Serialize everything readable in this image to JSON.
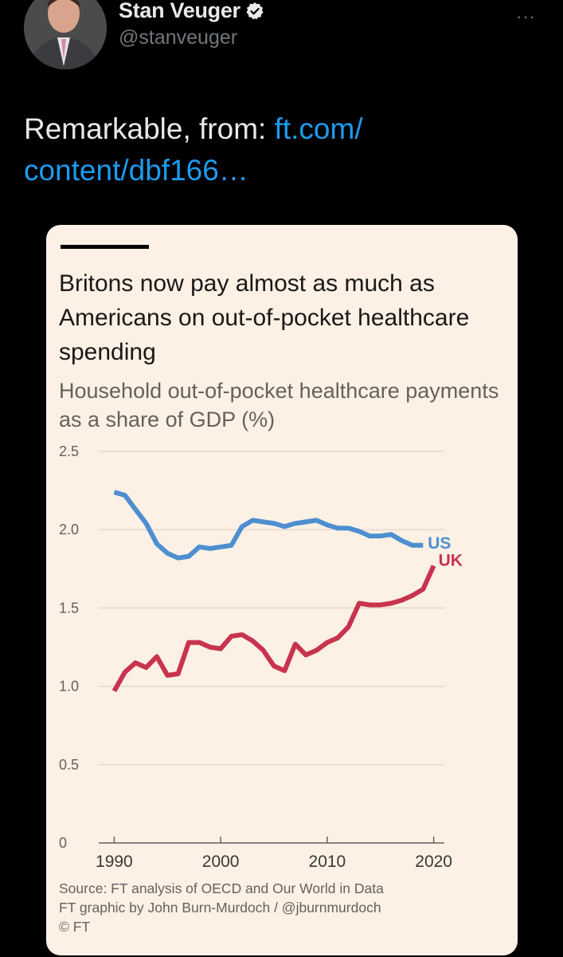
{
  "tweet": {
    "author_name": "Stan Veuger",
    "handle": "@stanveuger",
    "text_prefix": "Remarkable, from: ",
    "link_line1": "ft.com/",
    "link_line2": "content/dbf166…",
    "more_label": "···",
    "verified_icon": "verified-badge-icon",
    "accent_color": "#1d9bf0"
  },
  "chart_data": {
    "type": "line",
    "title": "Britons now pay almost as much as Americans on out-of-pocket healthcare spending",
    "subtitle": "Household out-of-pocket healthcare payments as a share of GDP (%)",
    "xlabel": "",
    "ylabel": "",
    "xlim": [
      1989,
      2021
    ],
    "ylim": [
      0,
      2.5
    ],
    "x_ticks": [
      1990,
      2000,
      2010,
      2020
    ],
    "y_ticks": [
      0,
      0.5,
      1.0,
      1.5,
      2.0,
      2.5
    ],
    "y_tick_labels": [
      "0",
      "0.5",
      "1.0",
      "1.5",
      "2.0",
      "2.5"
    ],
    "grid": true,
    "series": [
      {
        "name": "US",
        "color": "#4d8fd0",
        "x": [
          1990,
          1991,
          1992,
          1993,
          1994,
          1995,
          1996,
          1997,
          1998,
          1999,
          2000,
          2001,
          2002,
          2003,
          2004,
          2005,
          2006,
          2007,
          2008,
          2009,
          2010,
          2011,
          2012,
          2013,
          2014,
          2015,
          2016,
          2017,
          2018,
          2019
        ],
        "values": [
          2.24,
          2.22,
          2.13,
          2.04,
          1.91,
          1.85,
          1.82,
          1.83,
          1.89,
          1.88,
          1.89,
          1.9,
          2.02,
          2.06,
          2.05,
          2.04,
          2.02,
          2.04,
          2.05,
          2.06,
          2.03,
          2.01,
          2.01,
          1.99,
          1.96,
          1.96,
          1.97,
          1.93,
          1.9,
          1.9
        ]
      },
      {
        "name": "UK",
        "color": "#c8334d",
        "x": [
          1990,
          1991,
          1992,
          1993,
          1994,
          1995,
          1996,
          1997,
          1998,
          1999,
          2000,
          2001,
          2002,
          2003,
          2004,
          2005,
          2006,
          2007,
          2008,
          2009,
          2010,
          2011,
          2012,
          2013,
          2014,
          2015,
          2016,
          2017,
          2018,
          2019,
          2020
        ],
        "values": [
          0.97,
          1.09,
          1.15,
          1.12,
          1.19,
          1.07,
          1.08,
          1.28,
          1.28,
          1.25,
          1.24,
          1.32,
          1.33,
          1.29,
          1.23,
          1.13,
          1.1,
          1.27,
          1.2,
          1.23,
          1.28,
          1.31,
          1.38,
          1.53,
          1.52,
          1.52,
          1.53,
          1.55,
          1.58,
          1.62,
          1.77
        ]
      }
    ],
    "legend_labels": [
      "US",
      "UK"
    ],
    "source_line1": "Source: FT analysis of OECD and Our World in Data",
    "source_line2": "FT graphic by John Burn-Murdoch / @jburnmurdoch",
    "source_line3": "© FT"
  }
}
